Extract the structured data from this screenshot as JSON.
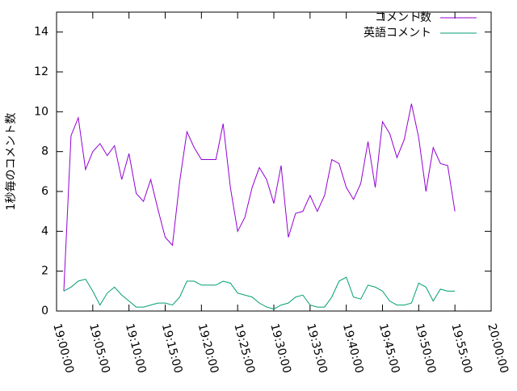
{
  "chart_data": {
    "type": "line",
    "ylabel": "1秒毎のコメント数",
    "x": [
      "19:01:00",
      "19:02:00",
      "19:03:00",
      "19:04:00",
      "19:05:00",
      "19:06:00",
      "19:07:00",
      "19:08:00",
      "19:09:00",
      "19:10:00",
      "19:11:00",
      "19:12:00",
      "19:13:00",
      "19:14:00",
      "19:15:00",
      "19:16:00",
      "19:17:00",
      "19:18:00",
      "19:19:00",
      "19:20:00",
      "19:21:00",
      "19:22:00",
      "19:23:00",
      "19:24:00",
      "19:25:00",
      "19:26:00",
      "19:27:00",
      "19:28:00",
      "19:29:00",
      "19:30:00",
      "19:31:00",
      "19:32:00",
      "19:33:00",
      "19:34:00",
      "19:35:00",
      "19:36:00",
      "19:37:00",
      "19:38:00",
      "19:39:00",
      "19:40:00",
      "19:41:00",
      "19:42:00",
      "19:43:00",
      "19:44:00",
      "19:45:00",
      "19:46:00",
      "19:47:00",
      "19:48:00",
      "19:49:00",
      "19:50:00",
      "19:51:00",
      "19:52:00",
      "19:53:00",
      "19:54:00",
      "19:55:00"
    ],
    "series": [
      {
        "name": "コメント数",
        "color": "#9400d3",
        "values": [
          1.0,
          8.8,
          9.7,
          7.1,
          8.0,
          8.4,
          7.8,
          8.3,
          6.6,
          7.9,
          5.9,
          5.5,
          6.6,
          5.1,
          3.7,
          3.3,
          6.5,
          9.0,
          8.2,
          7.6,
          7.6,
          7.6,
          9.4,
          6.2,
          4.0,
          4.7,
          6.2,
          7.2,
          6.6,
          5.4,
          7.3,
          3.7,
          4.9,
          5.0,
          5.8,
          5.0,
          5.8,
          7.6,
          7.4,
          6.2,
          5.6,
          6.4,
          8.5,
          6.2,
          9.5,
          8.9,
          7.7,
          8.6,
          10.4,
          8.7,
          6.0,
          8.2,
          7.4,
          7.3,
          5.0
        ]
      },
      {
        "name": "英語コメント",
        "color": "#009e73",
        "values": [
          1.0,
          1.2,
          1.5,
          1.6,
          1.0,
          0.3,
          0.9,
          1.2,
          0.8,
          0.5,
          0.2,
          0.2,
          0.3,
          0.4,
          0.4,
          0.3,
          0.7,
          1.5,
          1.5,
          1.3,
          1.3,
          1.3,
          1.5,
          1.4,
          0.9,
          0.8,
          0.7,
          0.4,
          0.2,
          0.1,
          0.3,
          0.4,
          0.7,
          0.8,
          0.3,
          0.2,
          0.2,
          0.7,
          1.5,
          1.7,
          0.7,
          0.6,
          1.3,
          1.2,
          1.0,
          0.5,
          0.3,
          0.3,
          0.4,
          1.4,
          1.2,
          0.5,
          1.1,
          1.0,
          1.0
        ]
      }
    ],
    "xlim": [
      "19:00:00",
      "20:00:00"
    ],
    "xticks": [
      "19:00:00",
      "19:05:00",
      "19:10:00",
      "19:15:00",
      "19:20:00",
      "19:25:00",
      "19:30:00",
      "19:35:00",
      "19:40:00",
      "19:45:00",
      "19:50:00",
      "19:55:00",
      "20:00:00"
    ],
    "ylim": [
      0,
      15
    ],
    "yticks": [
      0,
      2,
      4,
      6,
      8,
      10,
      12,
      14
    ],
    "grid": false,
    "legend": "top-right"
  }
}
